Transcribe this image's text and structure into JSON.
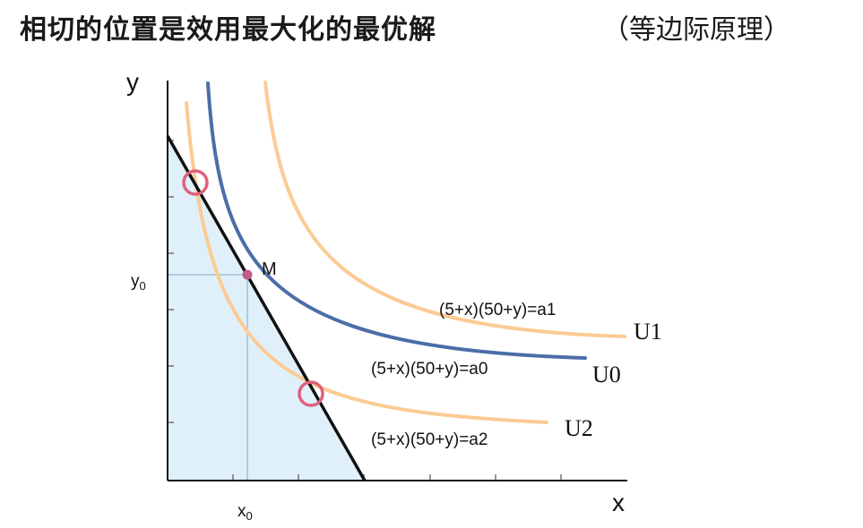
{
  "title": "相切的位置是效用最大化的最优解",
  "subtitle": "（等边际原理）",
  "axes": {
    "x": "x",
    "y": "y",
    "x0": "x",
    "x0_sub": "0",
    "y0": "y",
    "y0_sub": "0"
  },
  "point": {
    "name": "M"
  },
  "curves": [
    {
      "id": "U1",
      "label": "U1",
      "equation": "(5+x)(50+y)=a1",
      "color": "#fbcb94"
    },
    {
      "id": "U0",
      "label": "U0",
      "equation": "(5+x)(50+y)=a0",
      "color": "#4a6ea8"
    },
    {
      "id": "U2",
      "label": "U2",
      "equation": "(5+x)(50+y)=a2",
      "color": "#fbcb94"
    }
  ],
  "colors": {
    "budget_fill": "#dff0fa",
    "budget_line": "#111111",
    "circle": "#e0607e",
    "point": "#c25a8a",
    "guide": "#7fa7c4"
  }
}
